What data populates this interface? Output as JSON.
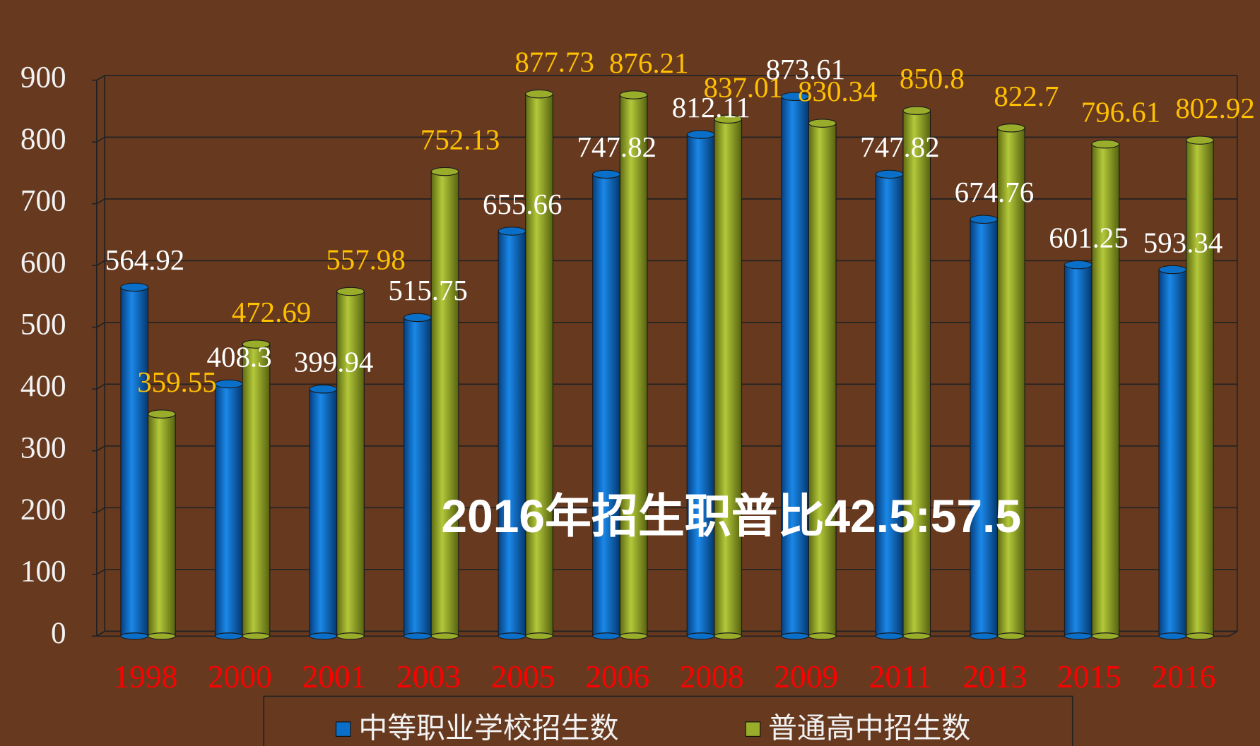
{
  "chart_data": {
    "type": "bar3d",
    "annotation": "2016年招生职普比42.5:57.5",
    "categories": [
      "1998",
      "2000",
      "2001",
      "2003",
      "2005",
      "2006",
      "2008",
      "2009",
      "2011",
      "2013",
      "2015",
      "2016"
    ],
    "series": [
      {
        "name": "中等职业学校招生数",
        "color": "#0a6fc8",
        "values": [
          564.92,
          408.3,
          399.94,
          515.75,
          655.66,
          747.82,
          812.11,
          873.61,
          747.82,
          674.76,
          601.25,
          593.34
        ]
      },
      {
        "name": "普通高中招生数",
        "color": "#99ad2a",
        "values": [
          359.55,
          472.69,
          557.98,
          752.13,
          877.73,
          876.21,
          837.01,
          830.34,
          850.8,
          822.7,
          796.61,
          802.92
        ]
      }
    ],
    "label_colors": [
      "#ffffff",
      "#ffc000"
    ],
    "ylim": [
      0,
      900
    ],
    "yticks": [
      0,
      100,
      200,
      300,
      400,
      500,
      600,
      700,
      800,
      900
    ],
    "grid": true
  }
}
